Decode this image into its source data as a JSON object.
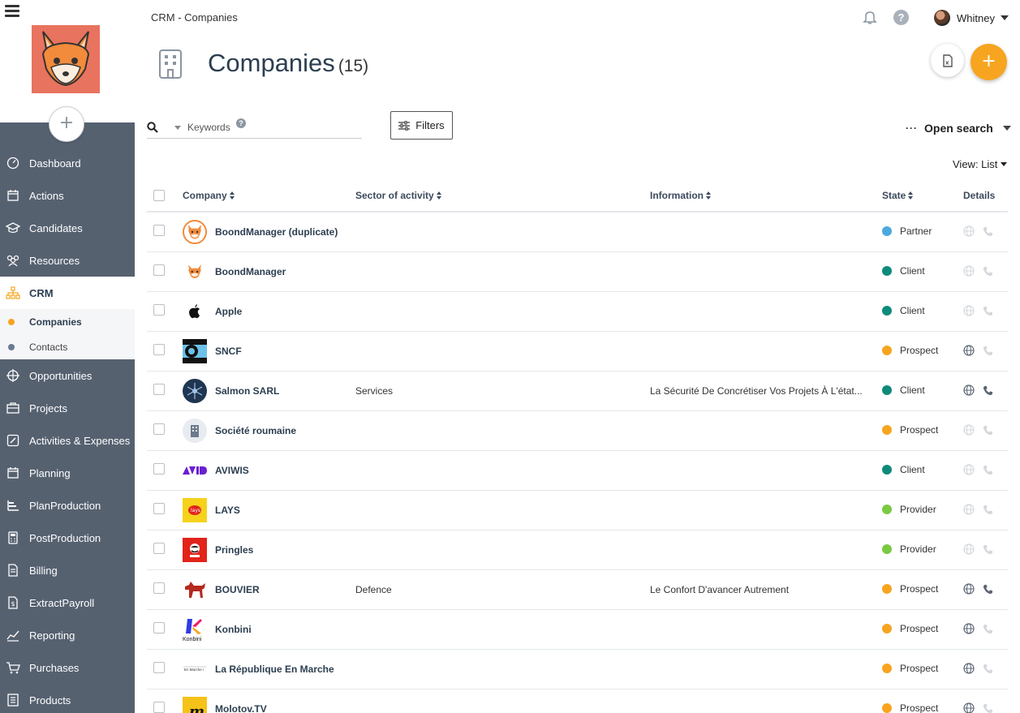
{
  "breadcrumb": "CRM - Companies",
  "user": {
    "name": "Whitney"
  },
  "help_label": "?",
  "page": {
    "title": "Companies",
    "count": "(15)"
  },
  "actions": {
    "add_label": "+"
  },
  "sidebar": {
    "add_label": "+",
    "items": [
      {
        "label": "Dashboard",
        "icon": "dashboard-icon"
      },
      {
        "label": "Actions",
        "icon": "calendar-icon"
      },
      {
        "label": "Candidates",
        "icon": "graduation-cap-icon"
      },
      {
        "label": "Resources",
        "icon": "people-icon"
      },
      {
        "label": "CRM",
        "icon": "org-chart-icon",
        "active": true
      },
      {
        "label": "Opportunities",
        "icon": "target-icon"
      },
      {
        "label": "Projects",
        "icon": "briefcase-icon"
      },
      {
        "label": "Activities & Expenses",
        "icon": "edit-icon"
      },
      {
        "label": "Planning",
        "icon": "calendar-icon"
      },
      {
        "label": "PlanProduction",
        "icon": "bar-icon"
      },
      {
        "label": "PostProduction",
        "icon": "calculator-icon"
      },
      {
        "label": "Billing",
        "icon": "invoice-icon"
      },
      {
        "label": "ExtractPayroll",
        "icon": "payroll-icon"
      },
      {
        "label": "Reporting",
        "icon": "chart-icon"
      },
      {
        "label": "Purchases",
        "icon": "cart-icon"
      },
      {
        "label": "Products",
        "icon": "list-icon"
      }
    ],
    "subitems": [
      {
        "label": "Companies",
        "active": true
      },
      {
        "label": "Contacts"
      }
    ]
  },
  "search": {
    "placeholder": "Keywords",
    "help": "?"
  },
  "filters_label": "Filters",
  "open_search": {
    "dots": "···",
    "label": "Open search"
  },
  "view": {
    "label": "View: List"
  },
  "table": {
    "headers": {
      "company": "Company",
      "sector": "Sector of activity",
      "information": "Information",
      "state": "State",
      "details": "Details"
    },
    "rows": [
      {
        "name": "BoondManager (duplicate)",
        "sector": "",
        "info": "",
        "state": "Partner",
        "state_color": "#4ba9e0",
        "web": false,
        "phone": false,
        "logo": "fox-circle"
      },
      {
        "name": "BoondManager",
        "sector": "",
        "info": "",
        "state": "Client",
        "state_color": "#0f8a7a",
        "web": false,
        "phone": false,
        "logo": "fox"
      },
      {
        "name": "Apple",
        "sector": "",
        "info": "",
        "state": "Client",
        "state_color": "#0f8a7a",
        "web": false,
        "phone": false,
        "logo": "apple"
      },
      {
        "name": "SNCF",
        "sector": "",
        "info": "",
        "state": "Prospect",
        "state_color": "#f7a520",
        "web": true,
        "phone": false,
        "logo": "sncf"
      },
      {
        "name": "Salmon SARL",
        "sector": "Services",
        "info": "La Sécurité De Concrétiser Vos Projets À L'état...",
        "state": "Client",
        "state_color": "#0f8a7a",
        "web": true,
        "phone": true,
        "logo": "salmon"
      },
      {
        "name": "Société roumaine",
        "sector": "",
        "info": "",
        "state": "Prospect",
        "state_color": "#f7a520",
        "web": false,
        "phone": false,
        "logo": "building"
      },
      {
        "name": "AVIWIS",
        "sector": "",
        "info": "",
        "state": "Client",
        "state_color": "#0f8a7a",
        "web": false,
        "phone": false,
        "logo": "avid"
      },
      {
        "name": "LAYS",
        "sector": "",
        "info": "",
        "state": "Provider",
        "state_color": "#7ac943",
        "web": false,
        "phone": false,
        "logo": "lays"
      },
      {
        "name": "Pringles",
        "sector": "",
        "info": "",
        "state": "Provider",
        "state_color": "#7ac943",
        "web": false,
        "phone": false,
        "logo": "pringles"
      },
      {
        "name": "BOUVIER",
        "sector": "Defence",
        "info": "Le Confort D'avancer Autrement",
        "state": "Prospect",
        "state_color": "#f7a520",
        "web": true,
        "phone": true,
        "logo": "dog"
      },
      {
        "name": "Konbini",
        "sector": "",
        "info": "",
        "state": "Prospect",
        "state_color": "#f7a520",
        "web": true,
        "phone": false,
        "logo": "konbini",
        "logo_text": "Konbini"
      },
      {
        "name": "La République En Marche",
        "sector": "",
        "info": "",
        "state": "Prospect",
        "state_color": "#f7a520",
        "web": true,
        "phone": false,
        "logo": "lrem",
        "logo_text": "En Marche !"
      },
      {
        "name": "Molotov.TV",
        "sector": "",
        "info": "",
        "state": "Prospect",
        "state_color": "#f7a520",
        "web": true,
        "phone": false,
        "logo": "molotov",
        "logo_text": "m"
      }
    ]
  }
}
